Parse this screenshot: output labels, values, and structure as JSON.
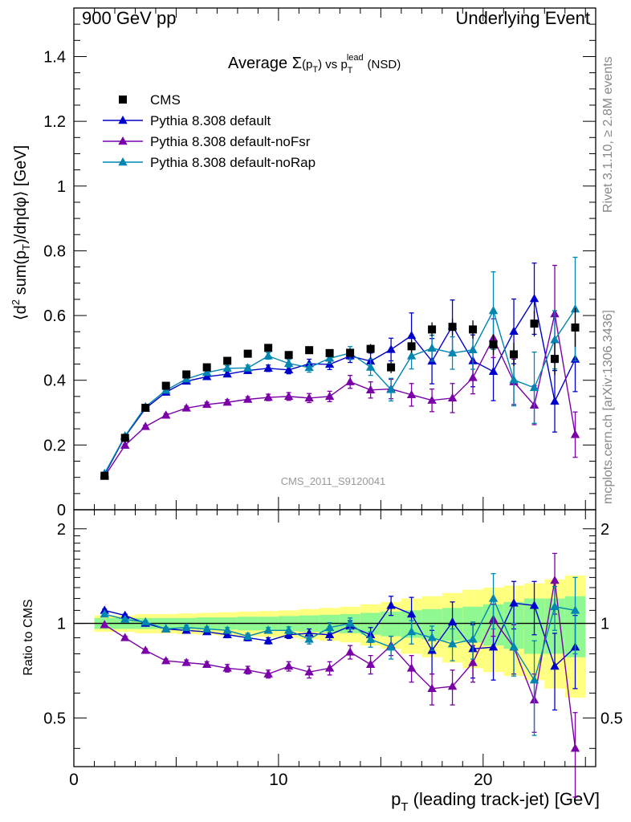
{
  "header": {
    "left": "900 GeV pp",
    "right": "Underlying Event"
  },
  "side_labels": {
    "rivet": "Rivet 3.1.10, ≥ 2.8M events",
    "mcplots": "mcplots.cern.ch [arXiv:1306.3436]"
  },
  "watermark": "CMS_2011_S9120041",
  "colors": {
    "cms": "#000000",
    "default": "#0000cc",
    "noFsr": "#7a00a8",
    "noRap": "#0086b0",
    "band_yellow": "#ffff80",
    "band_green": "#90f890"
  },
  "chart_data": [
    {
      "type": "scatter",
      "title_parts": {
        "prefix": "Average ",
        "sigma": "Σ",
        "pt": "(p",
        "pt_sub": "T",
        "pt_close": ")",
        "vs": " vs p",
        "lead_sup": "lead",
        "lead_sub": "T",
        "suffix": " (NSD)"
      },
      "ylabel_parts": {
        "open": "⟨d",
        "sup2": "2",
        "sum": " sum(p",
        "sub": "T",
        "rest": ")/dηdφ⟩ [GeV]"
      },
      "xlim": [
        0,
        25.5
      ],
      "ylim": [
        0,
        1.55
      ],
      "yticks": [
        "0",
        "0.2",
        "0.4",
        "0.6",
        "0.8",
        "1",
        "1.2",
        "1.4"
      ],
      "ytick_values": [
        0,
        0.2,
        0.4,
        0.6,
        0.8,
        1.0,
        1.2,
        1.4
      ],
      "legend_position": "top-left",
      "x": [
        1.5,
        2.5,
        3.5,
        4.5,
        5.5,
        6.5,
        7.5,
        8.5,
        9.5,
        10.5,
        11.5,
        12.5,
        13.5,
        14.5,
        15.5,
        16.5,
        17.5,
        18.5,
        19.5,
        20.5,
        21.5,
        22.5,
        23.5,
        24.5
      ],
      "series": [
        {
          "name": "CMS",
          "marker": "square",
          "values": [
            0.105,
            0.222,
            0.315,
            0.383,
            0.418,
            0.44,
            0.46,
            0.482,
            0.5,
            0.478,
            0.493,
            0.484,
            0.485,
            0.497,
            0.44,
            0.505,
            0.557,
            0.565,
            0.557,
            0.51,
            0.48,
            0.575,
            0.466,
            0.563
          ],
          "errors": [
            0.005,
            0.005,
            0.006,
            0.007,
            0.007,
            0.008,
            0.008,
            0.009,
            0.01,
            0.01,
            0.011,
            0.012,
            0.013,
            0.015,
            0.018,
            0.02,
            0.022,
            0.025,
            0.028,
            0.032,
            0.036,
            0.04,
            0.05,
            0.06
          ]
        },
        {
          "name": "Pythia 8.308 default",
          "marker": "triangle",
          "values": [
            0.108,
            0.226,
            0.313,
            0.363,
            0.397,
            0.411,
            0.419,
            0.43,
            0.437,
            0.432,
            0.451,
            0.449,
            0.475,
            0.459,
            0.495,
            0.538,
            0.459,
            0.568,
            0.46,
            0.427,
            0.551,
            0.652,
            0.335,
            0.465
          ],
          "errors": [
            0.002,
            0.003,
            0.004,
            0.005,
            0.006,
            0.007,
            0.008,
            0.009,
            0.01,
            0.012,
            0.014,
            0.016,
            0.02,
            0.025,
            0.035,
            0.07,
            0.07,
            0.08,
            0.08,
            0.09,
            0.1,
            0.11,
            0.095,
            0.1
          ]
        },
        {
          "name": "Pythia 8.308 default-noFsr",
          "marker": "triangle",
          "values": [
            0.103,
            0.199,
            0.257,
            0.292,
            0.314,
            0.325,
            0.332,
            0.341,
            0.347,
            0.35,
            0.345,
            0.35,
            0.395,
            0.37,
            0.373,
            0.355,
            0.338,
            0.345,
            0.408,
            0.53,
            0.395,
            0.323,
            0.605,
            0.232
          ],
          "errors": [
            0.002,
            0.003,
            0.004,
            0.005,
            0.006,
            0.007,
            0.008,
            0.008,
            0.01,
            0.012,
            0.014,
            0.016,
            0.02,
            0.025,
            0.03,
            0.035,
            0.035,
            0.045,
            0.05,
            0.06,
            0.07,
            0.06,
            0.15,
            0.07
          ]
        },
        {
          "name": "Pythia 8.308 default-noRap",
          "marker": "triangle",
          "values": [
            0.112,
            0.228,
            0.318,
            0.369,
            0.404,
            0.424,
            0.437,
            0.438,
            0.475,
            0.452,
            0.439,
            0.468,
            0.484,
            0.44,
            0.371,
            0.475,
            0.499,
            0.484,
            0.494,
            0.615,
            0.401,
            0.377,
            0.525,
            0.62
          ],
          "errors": [
            0.002,
            0.003,
            0.004,
            0.005,
            0.006,
            0.007,
            0.008,
            0.009,
            0.01,
            0.012,
            0.014,
            0.016,
            0.02,
            0.025,
            0.035,
            0.04,
            0.04,
            0.05,
            0.06,
            0.12,
            0.08,
            0.11,
            0.09,
            0.16
          ]
        }
      ]
    },
    {
      "type": "scatter",
      "ylabel": "Ratio to CMS",
      "xlabel_parts": {
        "p": "p",
        "sub": "T",
        "rest": " (leading track-jet) [GeV]"
      },
      "xlim": [
        0,
        25.5
      ],
      "ylim": [
        0.35,
        2.3
      ],
      "xticks": [
        "0",
        "10",
        "20"
      ],
      "xtick_values": [
        0,
        10,
        20
      ],
      "yticks": [
        "0.5",
        "1",
        "2"
      ],
      "ytick_values": [
        0.5,
        1,
        2
      ],
      "x": [
        1.5,
        2.5,
        3.5,
        4.5,
        5.5,
        6.5,
        7.5,
        8.5,
        9.5,
        10.5,
        11.5,
        12.5,
        13.5,
        14.5,
        15.5,
        16.5,
        17.5,
        18.5,
        19.5,
        20.5,
        21.5,
        22.5,
        23.5,
        24.5
      ],
      "band_green": [
        0.04,
        0.04,
        0.04,
        0.04,
        0.04,
        0.045,
        0.045,
        0.05,
        0.05,
        0.055,
        0.06,
        0.065,
        0.07,
        0.08,
        0.09,
        0.1,
        0.11,
        0.12,
        0.13,
        0.15,
        0.17,
        0.2,
        0.2,
        0.22
      ],
      "band_yellow": [
        0.06,
        0.06,
        0.07,
        0.07,
        0.075,
        0.08,
        0.085,
        0.09,
        0.095,
        0.1,
        0.11,
        0.12,
        0.13,
        0.15,
        0.17,
        0.2,
        0.22,
        0.25,
        0.28,
        0.3,
        0.32,
        0.34,
        0.38,
        0.42
      ],
      "series": [
        {
          "name": "Pythia 8.308 default",
          "values": [
            1.1,
            1.06,
            1.0,
            0.96,
            0.95,
            0.94,
            0.92,
            0.9,
            0.88,
            0.92,
            0.93,
            0.92,
            0.98,
            0.92,
            1.14,
            1.07,
            0.82,
            1.01,
            0.83,
            0.84,
            1.16,
            1.14,
            0.73,
            0.84
          ],
          "errors": [
            0.01,
            0.01,
            0.01,
            0.01,
            0.015,
            0.015,
            0.02,
            0.02,
            0.02,
            0.025,
            0.03,
            0.035,
            0.04,
            0.05,
            0.08,
            0.14,
            0.13,
            0.16,
            0.16,
            0.18,
            0.2,
            0.22,
            0.2,
            0.22
          ]
        },
        {
          "name": "Pythia 8.308 default-noFsr",
          "values": [
            0.99,
            0.9,
            0.82,
            0.76,
            0.75,
            0.74,
            0.72,
            0.71,
            0.69,
            0.73,
            0.7,
            0.72,
            0.81,
            0.74,
            0.85,
            0.72,
            0.62,
            0.63,
            0.75,
            1.03,
            0.84,
            0.57,
            1.37,
            0.4
          ],
          "errors": [
            0.01,
            0.01,
            0.01,
            0.01,
            0.015,
            0.015,
            0.02,
            0.02,
            0.02,
            0.025,
            0.03,
            0.035,
            0.04,
            0.05,
            0.06,
            0.07,
            0.07,
            0.08,
            0.1,
            0.12,
            0.15,
            0.12,
            0.3,
            0.12
          ]
        },
        {
          "name": "Pythia 8.308 default-noRap",
          "values": [
            1.07,
            1.03,
            1.01,
            0.96,
            0.97,
            0.96,
            0.95,
            0.91,
            0.95,
            0.95,
            0.89,
            0.97,
            1.0,
            0.89,
            0.84,
            0.94,
            0.9,
            0.86,
            0.89,
            1.2,
            0.84,
            0.66,
            1.13,
            1.1
          ],
          "errors": [
            0.01,
            0.01,
            0.01,
            0.01,
            0.015,
            0.015,
            0.02,
            0.02,
            0.02,
            0.025,
            0.03,
            0.035,
            0.04,
            0.05,
            0.07,
            0.08,
            0.08,
            0.1,
            0.12,
            0.24,
            0.16,
            0.22,
            0.18,
            0.3
          ]
        }
      ]
    }
  ]
}
